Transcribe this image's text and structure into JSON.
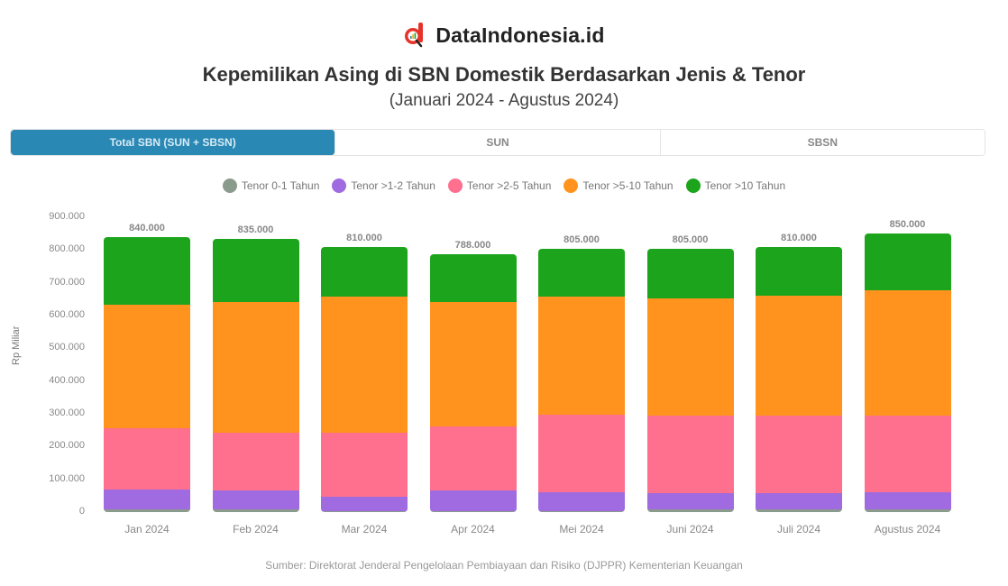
{
  "brand": {
    "name": "DataIndonesia.id",
    "logo_color": "#e63329"
  },
  "header": {
    "title": "Kepemilikan Asing di SBN Domestik Berdasarkan Jenis & Tenor",
    "subtitle": "(Januari 2024 - Agustus 2024)"
  },
  "tabs": [
    {
      "label": "Total SBN (SUN + SBSN)",
      "active": true
    },
    {
      "label": "SUN",
      "active": false
    },
    {
      "label": "SBSN",
      "active": false
    }
  ],
  "legend": [
    {
      "label": "Tenor 0-1 Tahun",
      "color": "#8a9a8c"
    },
    {
      "label": "Tenor >1-2 Tahun",
      "color": "#a06be0"
    },
    {
      "label": "Tenor >2-5 Tahun",
      "color": "#ff6f8e"
    },
    {
      "label": "Tenor >5-10 Tahun",
      "color": "#ff931e"
    },
    {
      "label": "Tenor >10 Tahun",
      "color": "#1ca51c"
    }
  ],
  "yaxis": {
    "title": "Rp Miliar",
    "ticks": [
      "900.000",
      "800.000",
      "700.000",
      "600.000",
      "500.000",
      "400.000",
      "300.000",
      "200.000",
      "100.000",
      "0"
    ]
  },
  "source": "Sumber: Direktorat Jenderal Pengelolaan Pembiayaan dan Risiko (DJPPR) Kementerian Keuangan",
  "chart_data": {
    "type": "bar",
    "stacked": true,
    "title": "Kepemilikan Asing di SBN Domestik Berdasarkan Jenis & Tenor",
    "subtitle": "(Januari 2024 - Agustus 2024)",
    "xlabel": "",
    "ylabel": "Rp Miliar",
    "ylim": [
      0,
      900000
    ],
    "grid": false,
    "legend_position": "top",
    "categories": [
      "Jan 2024",
      "Feb 2024",
      "Mar 2024",
      "Apr 2024",
      "Mei 2024",
      "Juni 2024",
      "Juli 2024",
      "Agustus 2024"
    ],
    "totals": [
      840000,
      835000,
      810000,
      788000,
      805000,
      805000,
      810000,
      850000
    ],
    "total_labels": [
      "840.000",
      "835.000",
      "810.000",
      "788.000",
      "805.000",
      "805.000",
      "810.000",
      "850.000"
    ],
    "series": [
      {
        "name": "Tenor 0-1 Tahun",
        "color": "#8a9a8c",
        "values": [
          8000,
          8000,
          3000,
          3000,
          3000,
          8000,
          8000,
          8000
        ]
      },
      {
        "name": "Tenor >1-2 Tahun",
        "color": "#a06be0",
        "values": [
          60000,
          57000,
          44000,
          63000,
          59000,
          49000,
          49000,
          52000
        ]
      },
      {
        "name": "Tenor >2-5 Tahun",
        "color": "#ff6f8e",
        "values": [
          187000,
          176000,
          196000,
          196000,
          234000,
          238000,
          238000,
          235000
        ]
      },
      {
        "name": "Tenor >5-10 Tahun",
        "color": "#ff931e",
        "values": [
          377000,
          399000,
          416000,
          380000,
          361000,
          358000,
          366000,
          383000
        ]
      },
      {
        "name": "Tenor >10 Tahun",
        "color": "#1ca51c",
        "values": [
          208000,
          195000,
          151000,
          146000,
          148000,
          152000,
          149000,
          172000
        ]
      }
    ]
  }
}
